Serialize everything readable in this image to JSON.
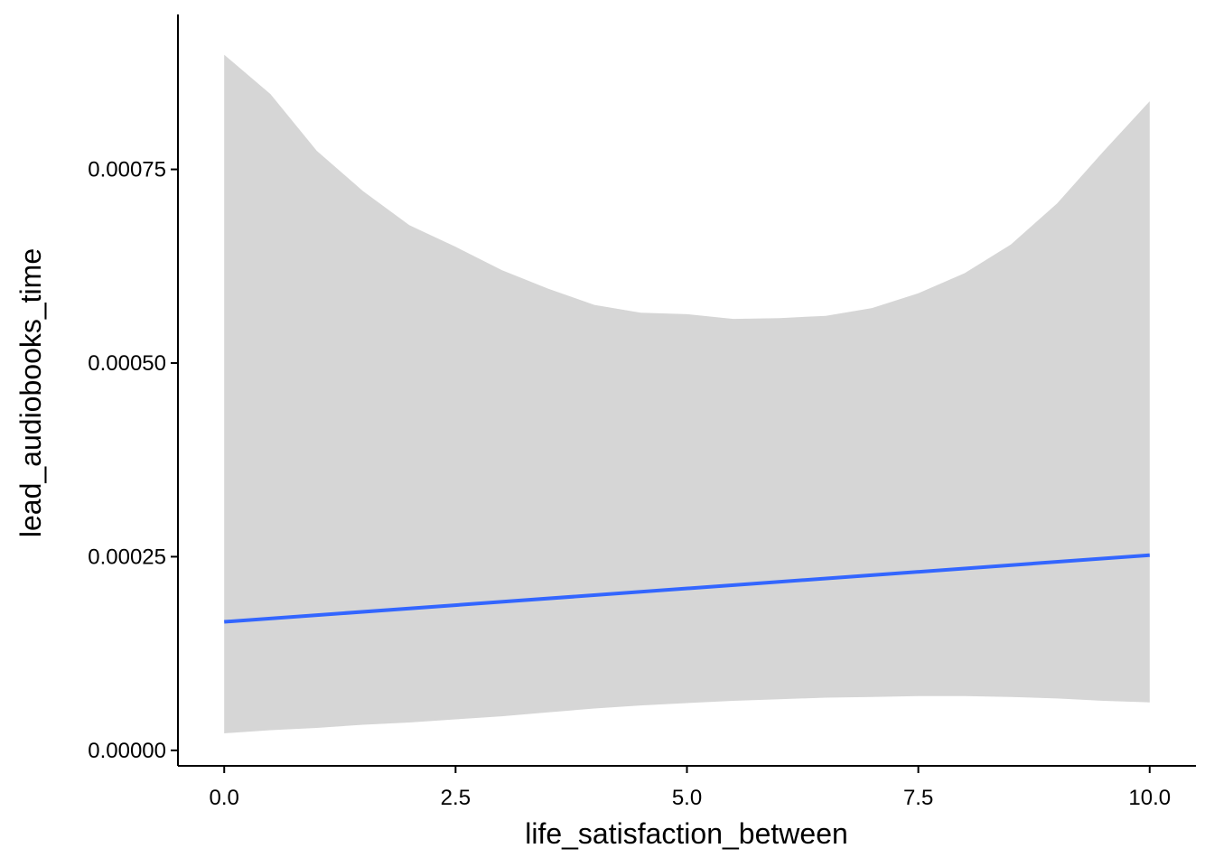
{
  "chart_data": {
    "type": "line",
    "title": "",
    "xlabel": "life_satisfaction_between",
    "ylabel": "lead_audiobooks_time",
    "xlim": [
      -0.5,
      10.5
    ],
    "ylim": [
      -2e-05,
      0.00095
    ],
    "x_ticks": [
      0,
      2.5,
      5,
      7.5,
      10
    ],
    "x_tick_labels": [
      "0.0",
      "2.5",
      "5.0",
      "7.5",
      "10.0"
    ],
    "y_ticks": [
      0,
      0.00025,
      0.0005,
      0.00075
    ],
    "y_tick_labels": [
      "0.00000",
      "0.00025",
      "0.00050",
      "0.00075"
    ],
    "grid": false,
    "series": [
      {
        "name": "fit",
        "x": [
          0,
          10
        ],
        "y": [
          0.000166,
          0.000252
        ],
        "color": "#3366FF"
      }
    ],
    "ribbon": {
      "color": "#D6D6D6",
      "x": [
        0,
        0.5,
        1.0,
        1.5,
        2.0,
        2.5,
        3.0,
        3.5,
        4.0,
        4.5,
        5.0,
        5.5,
        6.0,
        6.5,
        7.0,
        7.5,
        8.0,
        8.5,
        9.0,
        9.5,
        10.0
      ],
      "lower": [
        2.2e-05,
        2.6e-05,
        2.9e-05,
        3.3e-05,
        3.6e-05,
        4e-05,
        4.4e-05,
        4.9e-05,
        5.4e-05,
        5.8e-05,
        6.1e-05,
        6.4e-05,
        6.6e-05,
        6.8e-05,
        6.9e-05,
        7e-05,
        7e-05,
        6.9e-05,
        6.7e-05,
        6.4e-05,
        6.2e-05
      ],
      "upper": [
        0.000898,
        0.000847,
        0.000774,
        0.000722,
        0.000678,
        0.00065,
        0.00062,
        0.000596,
        0.000575,
        0.000565,
        0.000563,
        0.000557,
        0.000558,
        0.000561,
        0.000571,
        0.00059,
        0.000616,
        0.000653,
        0.000706,
        0.000773,
        0.000838
      ]
    }
  }
}
